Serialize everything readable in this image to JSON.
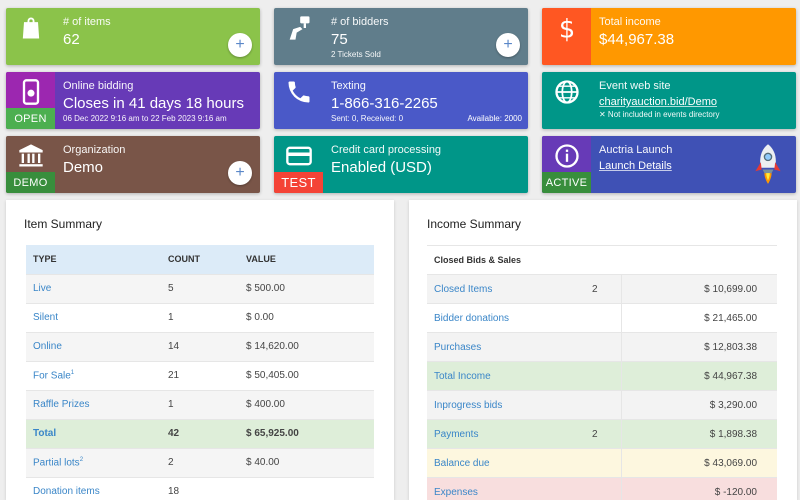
{
  "tiles": {
    "items": {
      "label": "# of items",
      "value": "62",
      "plus": "+",
      "color": "#8bc34a",
      "icon": "shopping-bag-icon"
    },
    "bidders": {
      "label": "# of bidders",
      "value": "75",
      "sub": "2 Tickets Sold",
      "plus": "+",
      "color": "#607d8b",
      "icon": "bidder-paddle-icon"
    },
    "income": {
      "label": "Total income",
      "value": "$44,967.38",
      "color": "#ff9800",
      "icon": "dollar-icon"
    },
    "bidding": {
      "label": "Online bidding",
      "value": "Closes in 41 days 18 hours",
      "sub": "06 Dec 2022 9:16 am to 22 Feb 2023 9:16 am",
      "badge": "OPEN",
      "color": "#7e3fb5",
      "icon": "phone-gear-icon"
    },
    "texting": {
      "label": "Texting",
      "value": "1-866-316-2265",
      "sub": "Sent: 0, Received: 0",
      "avail": "Available: 2000",
      "color": "#4a59c8",
      "icon": "phone-icon"
    },
    "website": {
      "label": "Event web site",
      "value": "charityauction.bid/Demo",
      "sub": "✕ Not included in events directory",
      "color": "#009688",
      "icon": "globe-icon"
    },
    "org": {
      "label": "Organization",
      "value": "Demo",
      "plus": "+",
      "badge": "DEMO",
      "color": "#795548",
      "icon": "building-icon"
    },
    "card": {
      "label": "Credit card processing",
      "value": "Enabled (USD)",
      "badge": "TEST",
      "color": "#009688",
      "icon": "credit-card-icon"
    },
    "launch": {
      "label": "Auctria Launch",
      "value": "Launch Details",
      "badge": "ACTIVE",
      "color": "#3f51b5",
      "icon": "info-icon"
    }
  },
  "item_summary": {
    "title": "Item Summary",
    "headers": [
      "TYPE",
      "COUNT",
      "VALUE"
    ],
    "rows": [
      {
        "type": "Live",
        "count": "5",
        "value": "$ 500.00"
      },
      {
        "type": "Silent",
        "count": "1",
        "value": "$ 0.00"
      },
      {
        "type": "Online",
        "count": "14",
        "value": "$ 14,620.00"
      },
      {
        "type": "For Sale",
        "sup": "1",
        "count": "21",
        "value": "$ 50,405.00"
      },
      {
        "type": "Raffle Prizes",
        "count": "1",
        "value": "$ 400.00"
      },
      {
        "type": "Total",
        "count": "42",
        "value": "$ 65,925.00",
        "total": true
      },
      {
        "type": "Partial lots",
        "sup": "2",
        "count": "2",
        "value": "$ 40.00"
      },
      {
        "type": "Donation items",
        "count": "18",
        "value": ""
      }
    ]
  },
  "income_summary": {
    "title": "Income Summary",
    "header": "Closed Bids & Sales",
    "rows": [
      {
        "label": "Closed Items",
        "count": "2",
        "value": "$ 10,699.00",
        "bg": "#f3f3f3"
      },
      {
        "label": "Bidder donations",
        "count": "",
        "value": "$ 21,465.00",
        "bg": "#ffffff"
      },
      {
        "label": "Purchases",
        "count": "",
        "value": "$ 12,803.38",
        "bg": "#f3f3f3"
      },
      {
        "label": "Total Income",
        "count": "",
        "value": "$ 44,967.38",
        "bg": "#deeed9"
      },
      {
        "label": "Inprogress bids",
        "count": "",
        "value": "$ 3,290.00",
        "bg": "#f3f3f3"
      },
      {
        "label": "Payments",
        "count": "2",
        "value": "$ 1,898.38",
        "bg": "#deeed9"
      },
      {
        "label": "Balance due",
        "count": "",
        "value": "$ 43,069.00",
        "bg": "#fdf7df"
      },
      {
        "label": "Expenses",
        "count": "",
        "value": "$ -120.00",
        "bg": "#f8dede"
      }
    ]
  }
}
